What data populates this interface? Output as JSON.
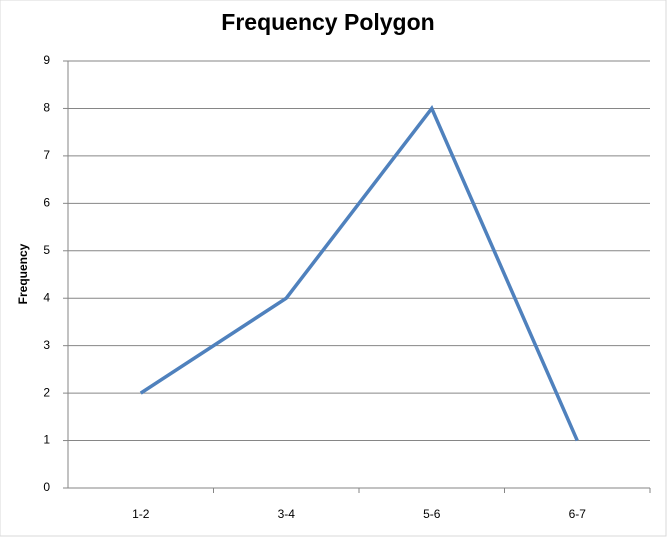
{
  "chart_data": {
    "type": "line",
    "title": "Frequency Polygon",
    "y_label": "Frequency",
    "categories": [
      "1-2",
      "3-4",
      "5-6",
      "6-7"
    ],
    "series": [
      {
        "name": "Frequency",
        "color": "#4f81bd",
        "values": [
          2,
          4,
          8,
          1
        ]
      }
    ],
    "ylim": [
      0,
      9
    ],
    "yticks": [
      0,
      1,
      2,
      3,
      4,
      5,
      6,
      7,
      8,
      9
    ],
    "grid": true
  }
}
